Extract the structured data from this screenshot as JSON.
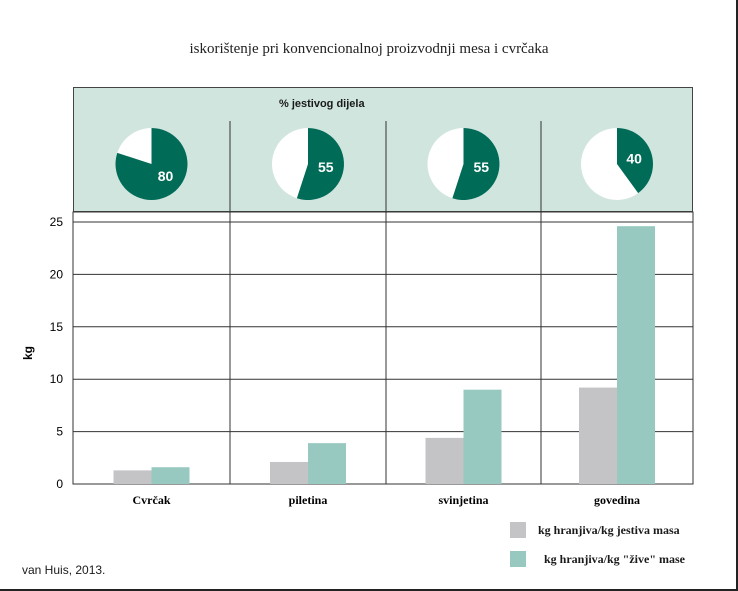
{
  "title": "iskorištenje pri konvencionalnoj proizvodnji mesa i cvrčaka",
  "source": "van Huis, 2013.",
  "colors": {
    "grey": "#c4c4c6",
    "teal": "#97c9c0",
    "pie_fill": "#006b57",
    "panel": "#cfe5dd"
  },
  "chart_data": [
    {
      "type": "pie",
      "title": "% jestivog dijela",
      "categories": [
        "Cvrčak",
        "piletina",
        "svinjetina",
        "govedina"
      ],
      "values": [
        80,
        55,
        55,
        40
      ],
      "labels": [
        "80",
        "55",
        "55",
        "40"
      ]
    },
    {
      "type": "bar",
      "categories": [
        "Cvrčak",
        "piletina",
        "svinjetina",
        "govedina"
      ],
      "ylabel": "kg",
      "ylim": [
        0,
        25
      ],
      "yticks": [
        "0",
        "5",
        "10",
        "15",
        "20",
        "25"
      ],
      "grid": true,
      "legend_position": "bottom-right",
      "series": [
        {
          "name": "kg hranjiva/kg jestiva masa",
          "color": "#c4c4c6",
          "values": [
            1.3,
            2.1,
            4.4,
            9.2
          ]
        },
        {
          "name": "kg hranjiva/kg \"žive\" mase",
          "color": "#97c9c0",
          "values": [
            1.6,
            3.9,
            9.0,
            24.6
          ]
        }
      ]
    }
  ]
}
